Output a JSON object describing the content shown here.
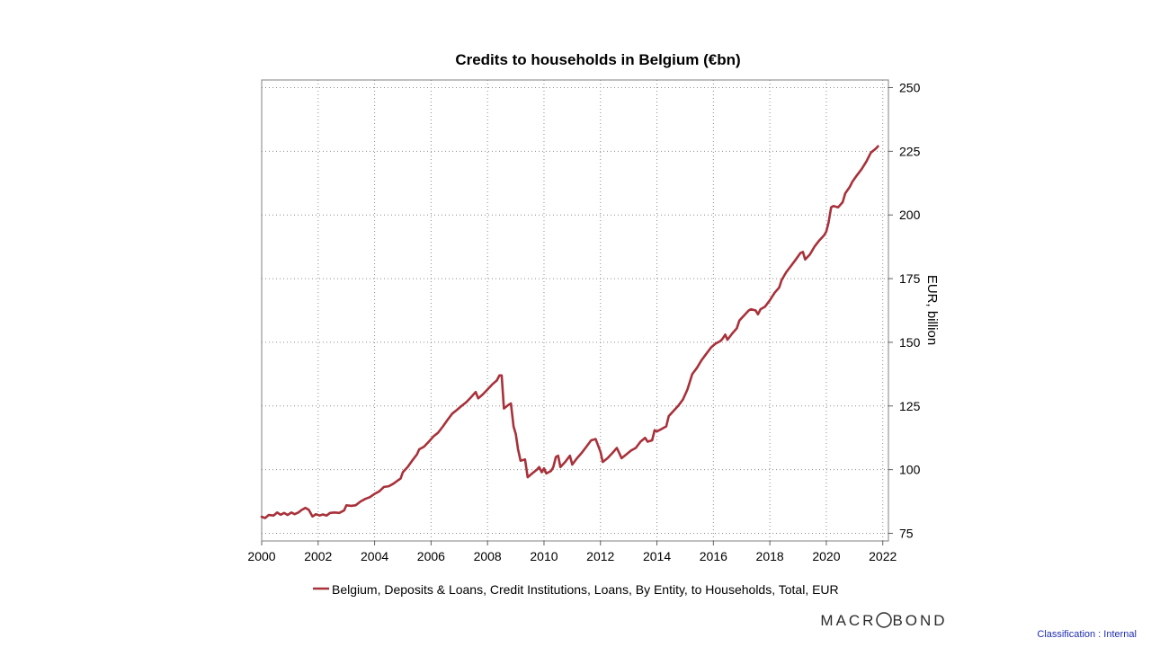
{
  "chart_data": {
    "type": "line",
    "title": "Credits to households in Belgium (€bn)",
    "xlabel": "",
    "ylabel": "EUR, billion",
    "x_ticks": [
      "2000",
      "2002",
      "2004",
      "2006",
      "2008",
      "2010",
      "2012",
      "2014",
      "2016",
      "2018",
      "2020",
      "2022"
    ],
    "y_ticks": [
      75,
      100,
      125,
      150,
      175,
      200,
      225,
      250
    ],
    "xlim": [
      2000,
      2022.2
    ],
    "ylim": [
      72,
      253
    ],
    "y_axis_side": "right",
    "grid": true,
    "legend_position": "bottom",
    "series": [
      {
        "name": "Belgium, Deposits & Loans, Credit Institutions, Loans, By Entity, to Households, Total, EUR",
        "color": "#a8313a",
        "points": [
          [
            2000.0,
            81.5
          ],
          [
            2000.12,
            81.0
          ],
          [
            2000.25,
            82.2
          ],
          [
            2000.42,
            82.0
          ],
          [
            2000.55,
            83.2
          ],
          [
            2000.67,
            82.3
          ],
          [
            2000.8,
            83.0
          ],
          [
            2000.92,
            82.2
          ],
          [
            2001.05,
            83.2
          ],
          [
            2001.17,
            82.5
          ],
          [
            2001.3,
            83.2
          ],
          [
            2001.42,
            84.2
          ],
          [
            2001.55,
            85.0
          ],
          [
            2001.67,
            84.2
          ],
          [
            2001.8,
            81.6
          ],
          [
            2001.92,
            82.5
          ],
          [
            2002.05,
            82.0
          ],
          [
            2002.17,
            82.4
          ],
          [
            2002.3,
            82.0
          ],
          [
            2002.42,
            83.0
          ],
          [
            2002.58,
            83.2
          ],
          [
            2002.75,
            83.0
          ],
          [
            2002.92,
            84.0
          ],
          [
            2003.0,
            86.0
          ],
          [
            2003.17,
            85.8
          ],
          [
            2003.33,
            86.0
          ],
          [
            2003.5,
            87.5
          ],
          [
            2003.67,
            88.5
          ],
          [
            2003.83,
            89.2
          ],
          [
            2004.0,
            90.5
          ],
          [
            2004.17,
            91.5
          ],
          [
            2004.33,
            93.2
          ],
          [
            2004.5,
            93.5
          ],
          [
            2004.67,
            94.5
          ],
          [
            2004.83,
            95.8
          ],
          [
            2004.92,
            96.5
          ],
          [
            2005.0,
            99.0
          ],
          [
            2005.17,
            101.0
          ],
          [
            2005.33,
            103.5
          ],
          [
            2005.5,
            106.0
          ],
          [
            2005.58,
            108.0
          ],
          [
            2005.75,
            109.0
          ],
          [
            2005.92,
            111.0
          ],
          [
            2006.08,
            113.0
          ],
          [
            2006.25,
            114.5
          ],
          [
            2006.42,
            117.0
          ],
          [
            2006.58,
            119.5
          ],
          [
            2006.75,
            122.0
          ],
          [
            2006.92,
            123.5
          ],
          [
            2007.08,
            125.0
          ],
          [
            2007.25,
            126.5
          ],
          [
            2007.42,
            128.5
          ],
          [
            2007.58,
            130.5
          ],
          [
            2007.67,
            128.0
          ],
          [
            2007.83,
            129.5
          ],
          [
            2008.0,
            131.5
          ],
          [
            2008.17,
            133.5
          ],
          [
            2008.33,
            135.0
          ],
          [
            2008.42,
            137.0
          ],
          [
            2008.5,
            137.0
          ],
          [
            2008.58,
            124.0
          ],
          [
            2008.75,
            125.5
          ],
          [
            2008.83,
            126.0
          ],
          [
            2008.92,
            117.0
          ],
          [
            2009.0,
            114.0
          ],
          [
            2009.08,
            108.0
          ],
          [
            2009.17,
            103.5
          ],
          [
            2009.33,
            104.0
          ],
          [
            2009.42,
            97.0
          ],
          [
            2009.58,
            98.5
          ],
          [
            2009.75,
            100.0
          ],
          [
            2009.83,
            101.0
          ],
          [
            2009.92,
            99.0
          ],
          [
            2010.0,
            100.5
          ],
          [
            2010.08,
            98.5
          ],
          [
            2010.25,
            99.5
          ],
          [
            2010.33,
            101.0
          ],
          [
            2010.42,
            105.0
          ],
          [
            2010.5,
            105.5
          ],
          [
            2010.58,
            101.0
          ],
          [
            2010.75,
            103.0
          ],
          [
            2010.92,
            105.5
          ],
          [
            2011.0,
            102.0
          ],
          [
            2011.17,
            104.5
          ],
          [
            2011.33,
            106.5
          ],
          [
            2011.5,
            109.0
          ],
          [
            2011.67,
            111.5
          ],
          [
            2011.83,
            112.0
          ],
          [
            2012.0,
            107.0
          ],
          [
            2012.08,
            103.0
          ],
          [
            2012.25,
            104.5
          ],
          [
            2012.42,
            106.5
          ],
          [
            2012.58,
            108.5
          ],
          [
            2012.75,
            104.5
          ],
          [
            2012.92,
            106.0
          ],
          [
            2013.08,
            107.5
          ],
          [
            2013.25,
            108.5
          ],
          [
            2013.42,
            111.0
          ],
          [
            2013.58,
            112.5
          ],
          [
            2013.67,
            111.0
          ],
          [
            2013.83,
            111.5
          ],
          [
            2013.92,
            115.5
          ],
          [
            2014.0,
            115.0
          ],
          [
            2014.17,
            116.0
          ],
          [
            2014.33,
            117.0
          ],
          [
            2014.42,
            121.0
          ],
          [
            2014.58,
            123.0
          ],
          [
            2014.75,
            125.0
          ],
          [
            2014.92,
            127.5
          ],
          [
            2015.08,
            131.5
          ],
          [
            2015.25,
            137.5
          ],
          [
            2015.42,
            140.0
          ],
          [
            2015.58,
            143.0
          ],
          [
            2015.75,
            145.5
          ],
          [
            2015.92,
            148.0
          ],
          [
            2016.08,
            149.5
          ],
          [
            2016.25,
            150.5
          ],
          [
            2016.33,
            151.5
          ],
          [
            2016.42,
            153.0
          ],
          [
            2016.5,
            151.0
          ],
          [
            2016.67,
            153.5
          ],
          [
            2016.83,
            155.5
          ],
          [
            2016.92,
            158.5
          ],
          [
            2017.08,
            160.5
          ],
          [
            2017.25,
            162.5
          ],
          [
            2017.33,
            163.0
          ],
          [
            2017.5,
            162.5
          ],
          [
            2017.58,
            161.0
          ],
          [
            2017.67,
            163.0
          ],
          [
            2017.83,
            164.0
          ],
          [
            2018.0,
            166.5
          ],
          [
            2018.17,
            169.5
          ],
          [
            2018.33,
            171.5
          ],
          [
            2018.42,
            174.5
          ],
          [
            2018.58,
            177.5
          ],
          [
            2018.75,
            180.0
          ],
          [
            2018.92,
            182.5
          ],
          [
            2019.08,
            185.0
          ],
          [
            2019.17,
            185.5
          ],
          [
            2019.25,
            182.5
          ],
          [
            2019.42,
            184.5
          ],
          [
            2019.58,
            187.5
          ],
          [
            2019.75,
            190.0
          ],
          [
            2019.92,
            192.0
          ],
          [
            2020.0,
            193.5
          ],
          [
            2020.08,
            197.0
          ],
          [
            2020.17,
            203.0
          ],
          [
            2020.25,
            203.5
          ],
          [
            2020.42,
            203.0
          ],
          [
            2020.58,
            205.0
          ],
          [
            2020.67,
            208.5
          ],
          [
            2020.83,
            211.0
          ],
          [
            2020.92,
            213.0
          ],
          [
            2021.08,
            215.5
          ],
          [
            2021.25,
            218.0
          ],
          [
            2021.42,
            221.0
          ],
          [
            2021.58,
            224.5
          ],
          [
            2021.75,
            226.0
          ],
          [
            2021.83,
            227.0
          ]
        ]
      }
    ]
  },
  "branding": {
    "logo_text": "MACROBOND",
    "classification": "Classification : Internal"
  }
}
